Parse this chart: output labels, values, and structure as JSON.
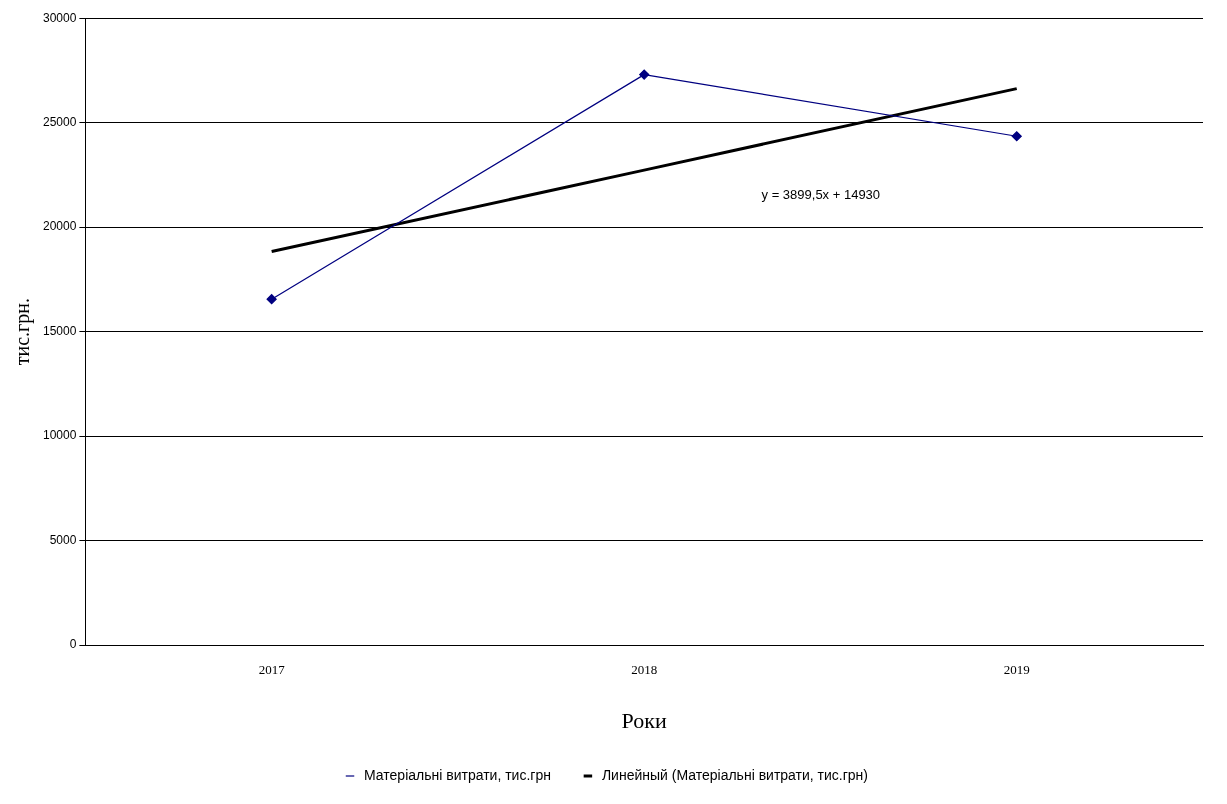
{
  "chart_data": {
    "type": "line",
    "xlabel": "Роки",
    "ylabel": "тис.грн.",
    "categories": [
      "2017",
      "2018",
      "2019"
    ],
    "series": [
      {
        "name": "Матеріальні витрати, тис.грн",
        "color": "#000080",
        "values": [
          16550,
          27300,
          24350
        ],
        "marker": "diamond"
      },
      {
        "name": "Линейный (Матеріальні витрати, тис.грн)",
        "color": "#000000",
        "type": "line",
        "values": [
          18830,
          22730,
          26630
        ],
        "marker": "none"
      }
    ],
    "ylim": [
      0,
      30000
    ],
    "yticks": [
      0,
      5000,
      10000,
      15000,
      20000,
      25000,
      30000
    ],
    "grid": "y",
    "legend": "bottom",
    "annotations": [
      "y = 3899,5x + 14930"
    ]
  }
}
